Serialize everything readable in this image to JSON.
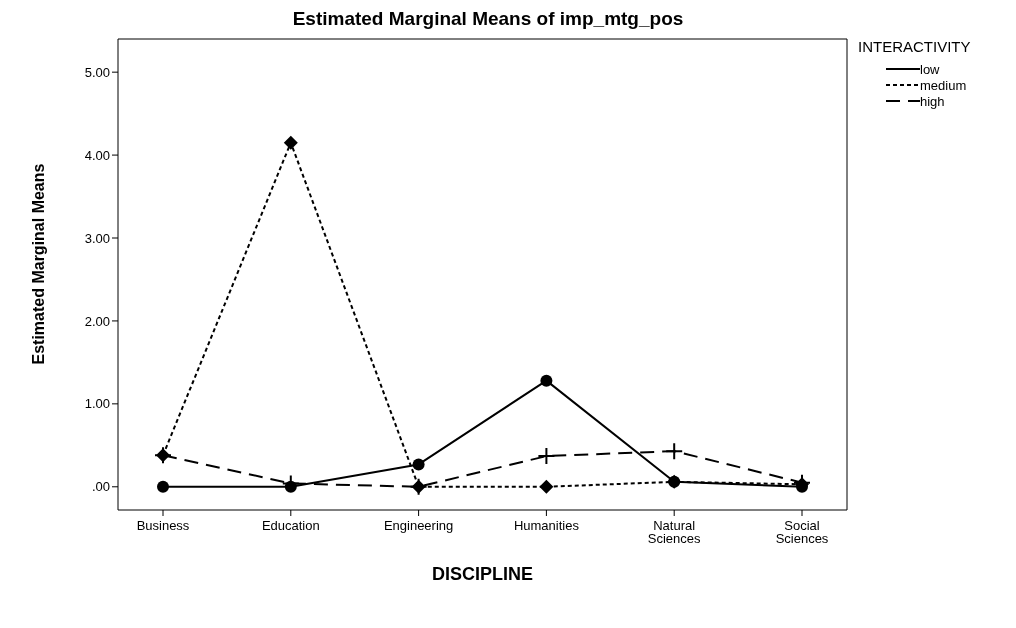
{
  "chart_data": {
    "type": "line",
    "title": "Estimated Marginal Means of imp_mtg_pos",
    "xlabel": "DISCIPLINE",
    "ylabel": "Estimated Marginal Means",
    "legend_title": "INTERACTIVITY",
    "categories": [
      "Business",
      "Education",
      "Engineering",
      "Humanities",
      "Natural Sciences",
      "Social Sciences"
    ],
    "series": [
      {
        "name": "low",
        "color": "#000000",
        "line_style": "solid",
        "marker": "circle",
        "values": [
          0,
          0,
          0.27,
          1.28,
          0.06,
          0
        ]
      },
      {
        "name": "medium",
        "color": "#000000",
        "line_style": "dotted",
        "marker": "diamond",
        "values": [
          0.38,
          4.15,
          0,
          0,
          0.06,
          0.03
        ]
      },
      {
        "name": "high",
        "color": "#000000",
        "line_style": "dashed",
        "marker": "cross",
        "values": [
          0.38,
          0.04,
          0,
          0.37,
          0.43,
          0.05
        ]
      }
    ],
    "ylim": [
      -0.28,
      5.4
    ],
    "yticks": [
      {
        "value": 0,
        "label": ".00"
      },
      {
        "value": 1,
        "label": "1.00"
      },
      {
        "value": 2,
        "label": "2.00"
      },
      {
        "value": 3,
        "label": "3.00"
      },
      {
        "value": 4,
        "label": "4.00"
      },
      {
        "value": 5,
        "label": "5.00"
      }
    ],
    "grid": false,
    "legend": "top right"
  }
}
